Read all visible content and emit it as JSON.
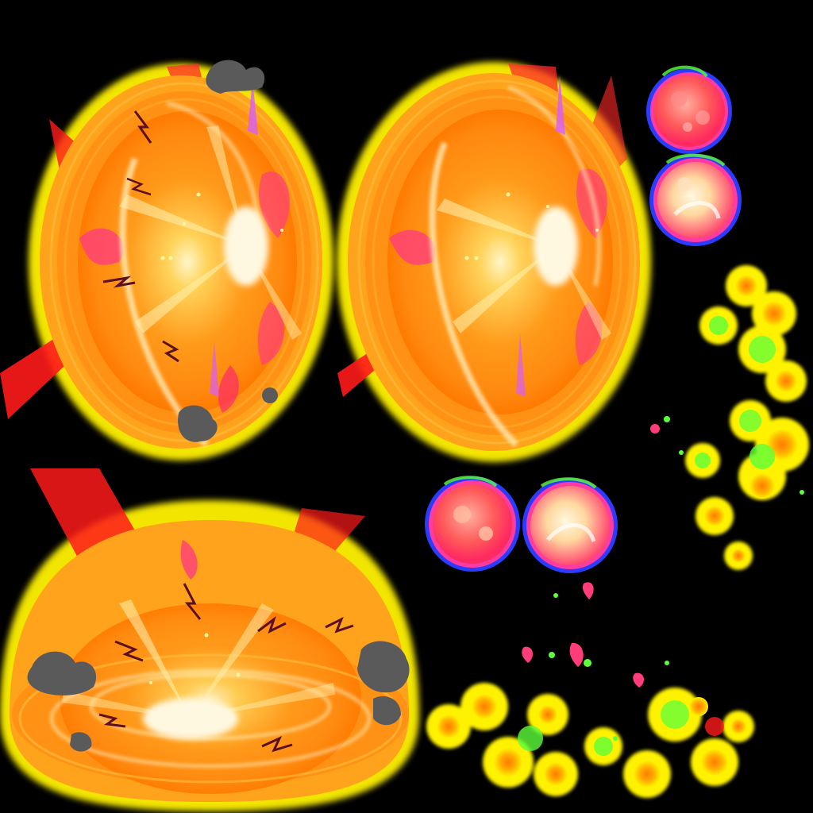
{
  "sprite_sheet": {
    "background": "#000000",
    "sprites": [
      {
        "name": "explosion-burst-sprite",
        "frame": 1,
        "has_debris": true
      },
      {
        "name": "explosion-burst-sprite",
        "frame": 2,
        "has_debris": false
      },
      {
        "name": "ground-explosion-sprite",
        "frame": 1
      },
      {
        "name": "fire-orb-sprite",
        "variant": "dim"
      },
      {
        "name": "fire-orb-sprite",
        "variant": "bright"
      },
      {
        "name": "fire-orb-sprite",
        "variant": "dim"
      },
      {
        "name": "fire-orb-sprite",
        "variant": "bright"
      },
      {
        "name": "ember-particles-sprite",
        "layout": "vertical"
      },
      {
        "name": "ember-particles-sprite",
        "layout": "horizontal"
      }
    ],
    "palette": {
      "glow_yellow": "#fff200",
      "core_orange": "#ff9a1a",
      "hot_white": "#fff6c8",
      "ray_red": "#ff1a1a",
      "flame_pink": "#ff3d7a",
      "spark_magenta": "#d75cff",
      "smoke_gray": "#5a5a5a",
      "orb_blue_rim": "#2b3cff",
      "ember_green": "#5cff3a"
    }
  }
}
